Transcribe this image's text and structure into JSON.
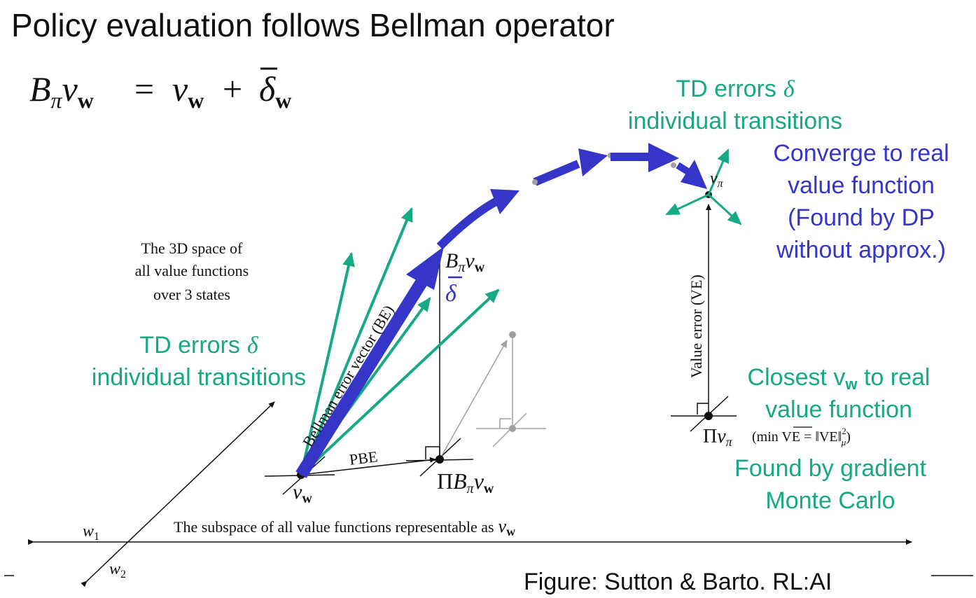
{
  "slide": {
    "title": "Policy evaluation follows Bellman operator",
    "equation": {
      "lhs_B": "B",
      "lhs_pi": "π",
      "lhs_v": "v",
      "lhs_w": "w",
      "equals": "=",
      "rhs_v": "v",
      "rhs_w": "w",
      "plus": "+",
      "delta": "δ",
      "delta_w": "w"
    },
    "caption": "Figure: Sutton & Barto. RL:AI"
  },
  "figure": {
    "space_label": [
      "The 3D space of",
      "all value functions",
      "over 3 states"
    ],
    "subspace_label_text": "The subspace of all value functions representable as",
    "subspace_label_v": "v",
    "subspace_label_w": "w",
    "w1_label": "w",
    "w1_sub": "1",
    "w2_label": "w",
    "w2_sub": "2",
    "vw_label_v": "v",
    "vw_label_w": "w",
    "pbe_label": "PBE",
    "be_label": "Bellman error vector (BE)",
    "ve_label": "Value error (VE)",
    "bpi_label": {
      "B": "B",
      "pi": "π",
      "v": "v",
      "w": "w"
    },
    "delta_bar": "δ",
    "pi_b_label": {
      "Pi": "Π",
      "B": "B",
      "pi": "π",
      "v": "v",
      "w": "w"
    },
    "vpi_label": {
      "v": "v",
      "pi": "π"
    },
    "pi_vpi_label": {
      "Pi": "Π",
      "v": "v",
      "pi": "π",
      "formula": "(min VE = ‖VE‖",
      "sup": "2",
      "sub": "μ",
      "close": ")"
    }
  },
  "annotations": {
    "td_top": {
      "line1": "TD errors",
      "symbol": "δ",
      "line2": "individual transitions"
    },
    "td_left": {
      "line1": "TD errors",
      "symbol": "δ",
      "line2": "individual transitions"
    },
    "converge": [
      "Converge to real",
      "value function",
      "(Found by DP",
      "without approx.)"
    ],
    "closest": {
      "line1_a": "Closest v",
      "line1_sub": "w",
      "line1_b": " to real",
      "line2": "value function"
    },
    "gradient": [
      "Found by gradient",
      "Monte Carlo"
    ]
  },
  "colors": {
    "green": "#17a884",
    "blue": "#3535c8",
    "black": "#111111",
    "gray": "#a0a0a0"
  }
}
